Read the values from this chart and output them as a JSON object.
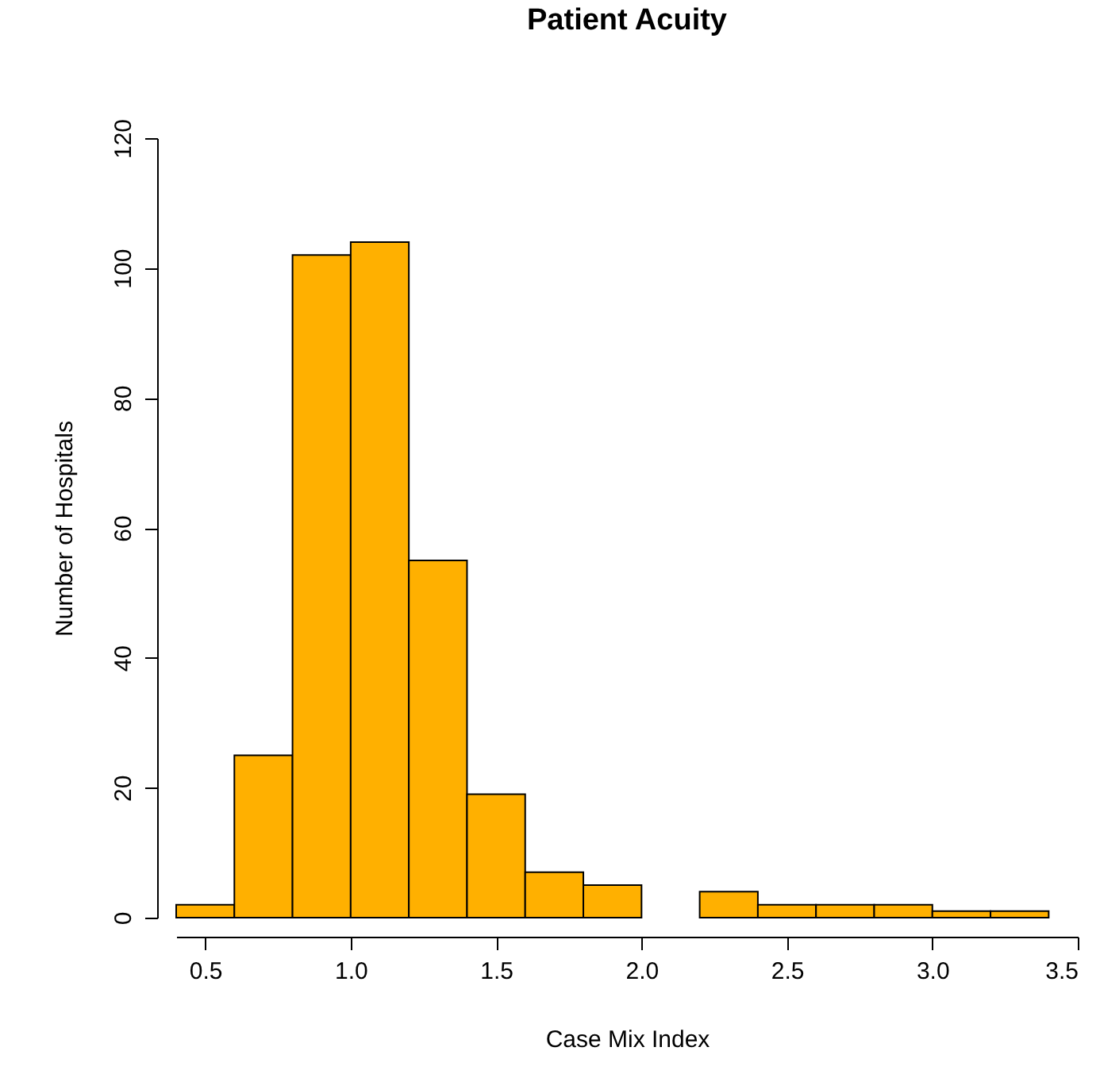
{
  "chart_data": {
    "type": "histogram",
    "title": "Patient Acuity",
    "xlabel": "Case Mix Index",
    "ylabel": "Number of Hospitals",
    "bins": [
      0.4,
      0.6,
      0.8,
      1.0,
      1.2,
      1.4,
      1.6,
      1.8,
      2.0,
      2.2,
      2.4,
      2.6,
      2.8,
      3.0,
      3.2,
      3.4
    ],
    "values": [
      2,
      25,
      102,
      104,
      55,
      19,
      7,
      5,
      0,
      4,
      2,
      2,
      2,
      1,
      1
    ],
    "color": "#ffb000",
    "xlim": [
      0.4,
      3.5
    ],
    "xticks": [
      0.5,
      {
        "value": 1,
        "label": "1.0"
      },
      1.5,
      {
        "value": 2,
        "label": "2.0"
      },
      2.5,
      {
        "value": 3,
        "label": "3.0"
      },
      3.5
    ],
    "ylim": [
      0,
      120
    ],
    "yticks": [
      0,
      20,
      40,
      60,
      80,
      100,
      120
    ],
    "grid": false
  }
}
